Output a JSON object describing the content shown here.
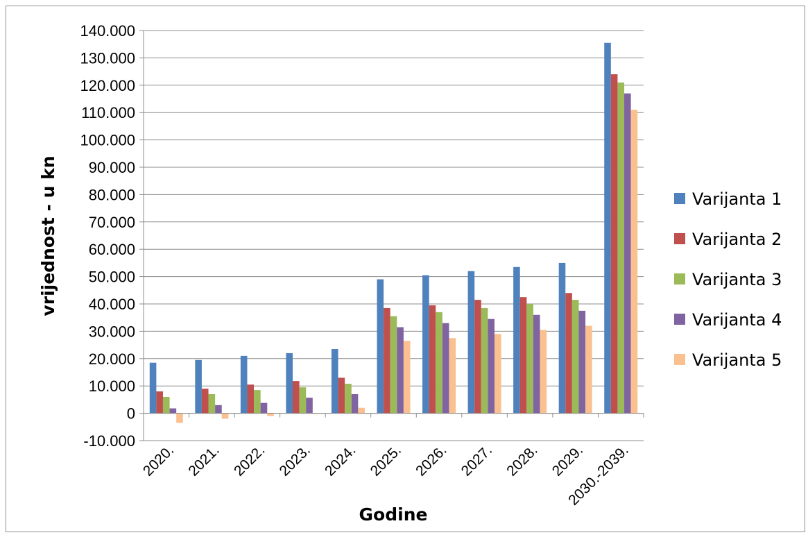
{
  "chart_data": {
    "type": "bar",
    "xlabel": "Godine",
    "ylabel": "vrijednost - u kn",
    "ylim": [
      -10000,
      140000
    ],
    "ytick_step": 10000,
    "ytick_labels": [
      "-10.000",
      "0",
      "10.000",
      "20.000",
      "30.000",
      "40.000",
      "50.000",
      "60.000",
      "70.000",
      "80.000",
      "90.000",
      "100.000",
      "110.000",
      "120.000",
      "130.000",
      "140.000"
    ],
    "grid": true,
    "legend_position": "right",
    "categories": [
      "2020.",
      "2021.",
      "2022.",
      "2023.",
      "2024.",
      "2025.",
      "2026.",
      "2027.",
      "2028.",
      "2029.",
      "2030.-2039."
    ],
    "series": [
      {
        "name": "Varijanta 1",
        "color": "#4f81bd",
        "values": [
          18500,
          19500,
          21000,
          22000,
          23500,
          49000,
          50500,
          52000,
          53500,
          55000,
          135500
        ]
      },
      {
        "name": "Varijanta 2",
        "color": "#c0504d",
        "values": [
          8000,
          9000,
          10500,
          11800,
          13000,
          38500,
          39500,
          41500,
          42500,
          44000,
          124000
        ]
      },
      {
        "name": "Varijanta 3",
        "color": "#9bbb59",
        "values": [
          6000,
          7000,
          8500,
          9500,
          10800,
          35500,
          37000,
          38500,
          40000,
          41500,
          121000
        ]
      },
      {
        "name": "Varijanta 4",
        "color": "#8064a2",
        "values": [
          1800,
          3000,
          3800,
          5700,
          7000,
          31500,
          33000,
          34500,
          36000,
          37500,
          117000
        ]
      },
      {
        "name": "Varijanta 5",
        "color": "#fac090",
        "values": [
          -3500,
          -2000,
          -1000,
          -200,
          2000,
          26500,
          27500,
          29000,
          30500,
          32000,
          111000
        ]
      }
    ]
  }
}
